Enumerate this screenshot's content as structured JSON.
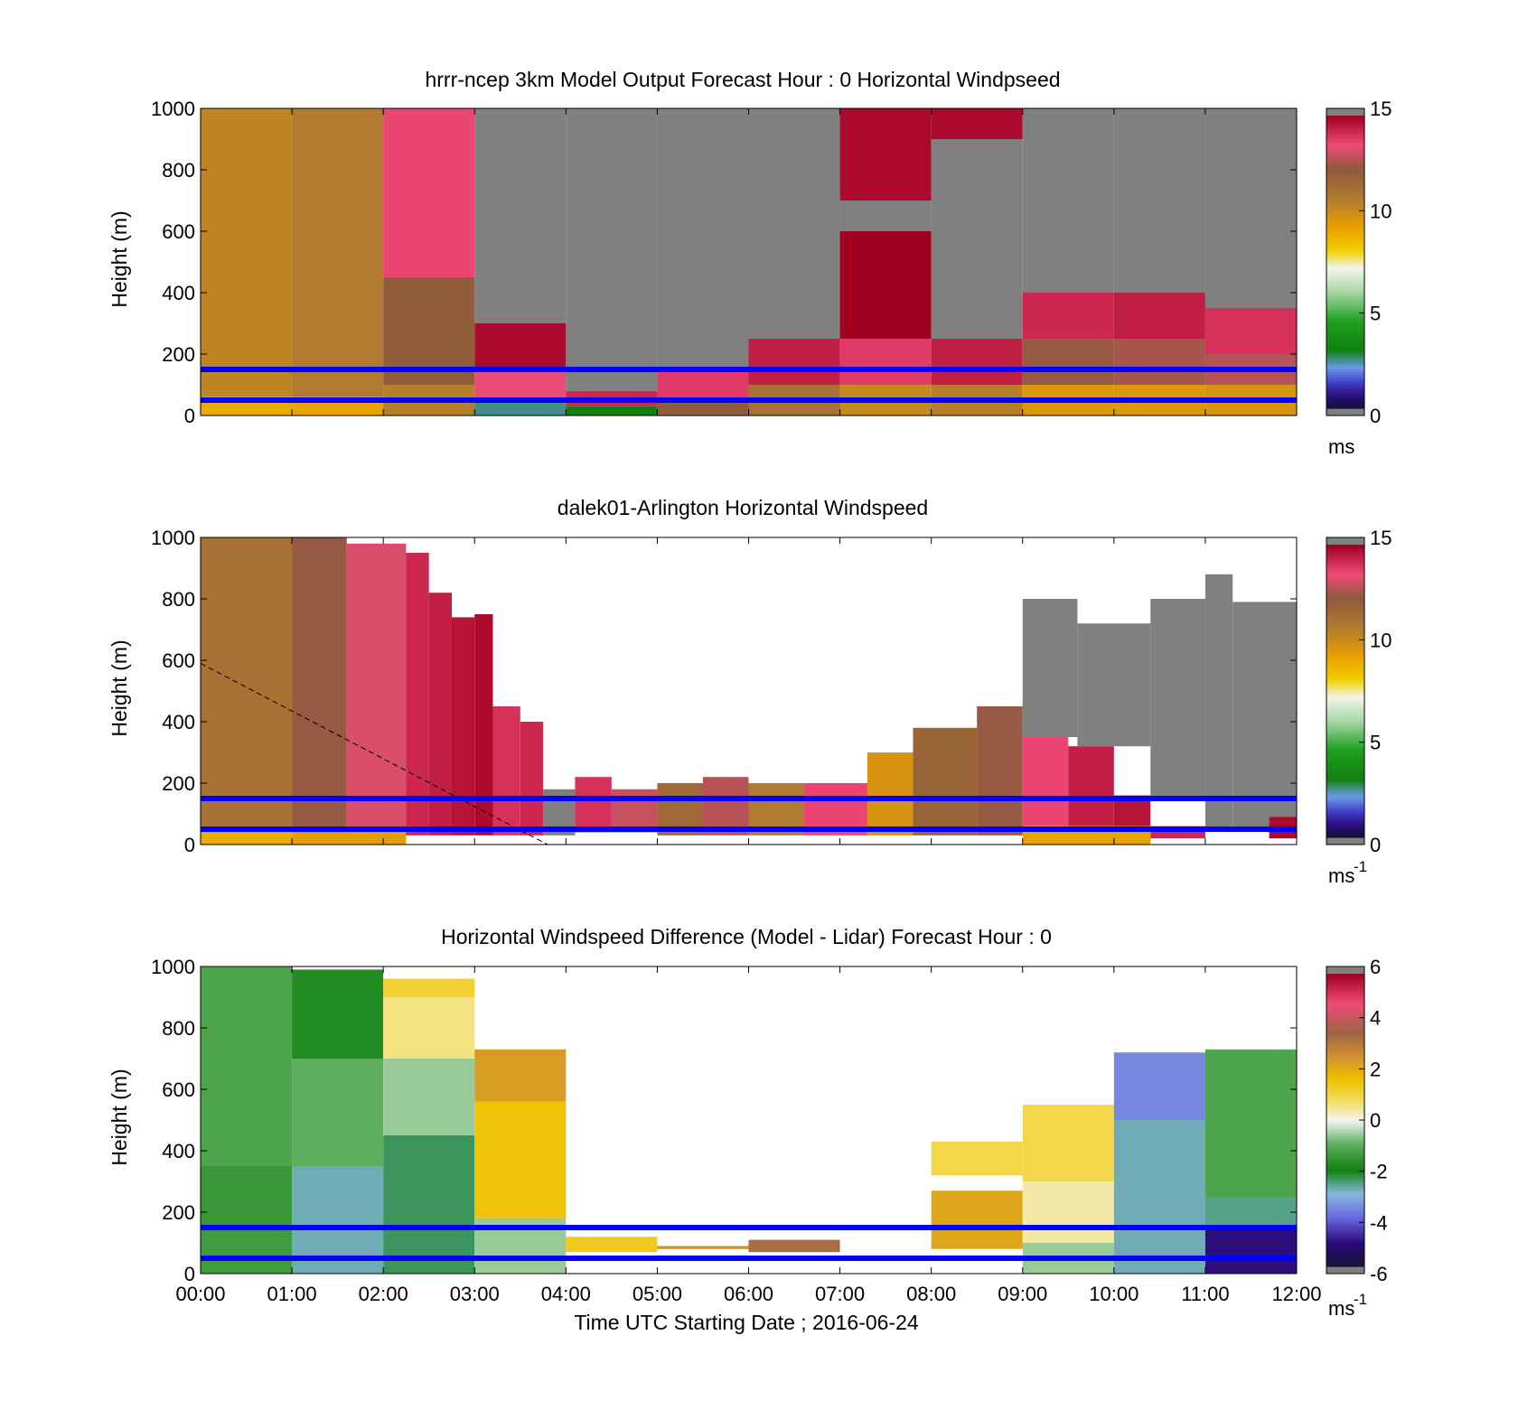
{
  "chart_data": [
    {
      "type": "heatmap",
      "title": "hrrr-ncep 3km Model Output   Forecast Hour : 0 Horizontal Windpseed",
      "ylabel": "Height (m)",
      "ylim": [
        0,
        1000
      ],
      "yticks": [
        "0",
        "200",
        "400",
        "600",
        "800",
        "1000"
      ],
      "xlim": [
        0,
        12
      ],
      "x_tick_labels_shown": false,
      "colorbar": {
        "range": [
          0,
          15
        ],
        "ticks": [
          "0",
          "5",
          "10",
          "15"
        ],
        "unit": "ms"
      },
      "reference_heights_m": [
        50,
        150
      ],
      "cells": [
        {
          "x": [
            0,
            1
          ],
          "y": [
            60,
            1000
          ],
          "v": 10.4
        },
        {
          "x": [
            0,
            1
          ],
          "y": [
            0,
            60
          ],
          "v": 9.0
        },
        {
          "x": [
            1,
            2
          ],
          "y": [
            60,
            1000
          ],
          "v": 10.8
        },
        {
          "x": [
            1,
            2
          ],
          "y": [
            0,
            60
          ],
          "v": 9.2
        },
        {
          "x": [
            2,
            3
          ],
          "y": [
            450,
            1000
          ],
          "v": 13.6
        },
        {
          "x": [
            2,
            3
          ],
          "y": [
            100,
            450
          ],
          "v": 12.2
        },
        {
          "x": [
            2,
            3
          ],
          "y": [
            0,
            100
          ],
          "v": 10.6
        },
        {
          "x": [
            3,
            4
          ],
          "y": [
            300,
            1000
          ],
          "v": null
        },
        {
          "x": [
            3,
            4
          ],
          "y": [
            150,
            300
          ],
          "v": 14.8
        },
        {
          "x": [
            3,
            4
          ],
          "y": [
            50,
            150
          ],
          "v": 13.4
        },
        {
          "x": [
            3,
            4
          ],
          "y": [
            0,
            50
          ],
          "v": 2.5
        },
        {
          "x": [
            4,
            5
          ],
          "y": [
            80,
            1000
          ],
          "v": null
        },
        {
          "x": [
            4,
            5
          ],
          "y": [
            30,
            80
          ],
          "v": 14.2
        },
        {
          "x": [
            4,
            5
          ],
          "y": [
            0,
            30
          ],
          "v": 3.0
        },
        {
          "x": [
            5,
            6
          ],
          "y": [
            150,
            1000
          ],
          "v": null
        },
        {
          "x": [
            5,
            6
          ],
          "y": [
            50,
            150
          ],
          "v": 13.8
        },
        {
          "x": [
            5,
            6
          ],
          "y": [
            0,
            50
          ],
          "v": 12.2
        },
        {
          "x": [
            6,
            7
          ],
          "y": [
            250,
            1000
          ],
          "v": null
        },
        {
          "x": [
            6,
            7
          ],
          "y": [
            100,
            250
          ],
          "v": 14.4
        },
        {
          "x": [
            6,
            7
          ],
          "y": [
            0,
            100
          ],
          "v": 11.2
        },
        {
          "x": [
            7,
            8
          ],
          "y": [
            700,
            1000
          ],
          "v": 14.8
        },
        {
          "x": [
            7,
            8
          ],
          "y": [
            600,
            700
          ],
          "v": null
        },
        {
          "x": [
            7,
            8
          ],
          "y": [
            250,
            600
          ],
          "v": 15.0
        },
        {
          "x": [
            7,
            8
          ],
          "y": [
            100,
            250
          ],
          "v": 13.8
        },
        {
          "x": [
            7,
            8
          ],
          "y": [
            0,
            100
          ],
          "v": 10.2
        },
        {
          "x": [
            8,
            9
          ],
          "y": [
            900,
            1000
          ],
          "v": 14.8
        },
        {
          "x": [
            8,
            9
          ],
          "y": [
            250,
            900
          ],
          "v": null
        },
        {
          "x": [
            8,
            9
          ],
          "y": [
            100,
            250
          ],
          "v": 14.4
        },
        {
          "x": [
            8,
            9
          ],
          "y": [
            0,
            100
          ],
          "v": 10.6
        },
        {
          "x": [
            9,
            10
          ],
          "y": [
            400,
            1000
          ],
          "v": null
        },
        {
          "x": [
            9,
            10
          ],
          "y": [
            250,
            400
          ],
          "v": 14.2
        },
        {
          "x": [
            9,
            10
          ],
          "y": [
            100,
            250
          ],
          "v": 12.4
        },
        {
          "x": [
            9,
            10
          ],
          "y": [
            0,
            100
          ],
          "v": 9.6
        },
        {
          "x": [
            10,
            11
          ],
          "y": [
            400,
            1000
          ],
          "v": null
        },
        {
          "x": [
            10,
            11
          ],
          "y": [
            250,
            400
          ],
          "v": 14.4
        },
        {
          "x": [
            10,
            11
          ],
          "y": [
            100,
            250
          ],
          "v": 12.6
        },
        {
          "x": [
            10,
            11
          ],
          "y": [
            0,
            100
          ],
          "v": 9.6
        },
        {
          "x": [
            11,
            12
          ],
          "y": [
            350,
            1000
          ],
          "v": null
        },
        {
          "x": [
            11,
            12
          ],
          "y": [
            200,
            350
          ],
          "v": 14.0
        },
        {
          "x": [
            11,
            12
          ],
          "y": [
            100,
            200
          ],
          "v": 12.8
        },
        {
          "x": [
            11,
            12
          ],
          "y": [
            0,
            100
          ],
          "v": 9.8
        }
      ]
    },
    {
      "type": "heatmap",
      "title": "dalek01-Arlington  Horizontal Windspeed",
      "ylabel": "Height (m)",
      "ylim": [
        0,
        1000
      ],
      "yticks": [
        "0",
        "200",
        "400",
        "600",
        "800",
        "1000"
      ],
      "xlim": [
        0,
        12
      ],
      "x_tick_labels_shown": false,
      "colorbar": {
        "range": [
          0,
          15
        ],
        "ticks": [
          "0",
          "5",
          "10",
          "15"
        ],
        "unit": "ms",
        "unit_exponent": "-1"
      },
      "reference_heights_m": [
        50,
        150
      ],
      "overlay_line": {
        "from": [
          0,
          590
        ],
        "to": [
          3.8,
          0
        ]
      },
      "cells": [
        {
          "x": [
            0,
            1
          ],
          "y": [
            40,
            1000
          ],
          "v": 11.2
        },
        {
          "x": [
            0,
            1
          ],
          "y": [
            0,
            40
          ],
          "v": 9.0
        },
        {
          "x": [
            1,
            1.6
          ],
          "y": [
            40,
            1000
          ],
          "v": 12.4
        },
        {
          "x": [
            1.6,
            2.25
          ],
          "y": [
            40,
            980
          ],
          "v": 13.2
        },
        {
          "x": [
            1,
            2.25
          ],
          "y": [
            0,
            40
          ],
          "v": 9.4
        },
        {
          "x": [
            2.25,
            2.5
          ],
          "y": [
            30,
            950
          ],
          "v": 14.2
        },
        {
          "x": [
            2.5,
            2.75
          ],
          "y": [
            30,
            820
          ],
          "v": 14.4
        },
        {
          "x": [
            2.75,
            3.0
          ],
          "y": [
            30,
            740
          ],
          "v": 14.6
        },
        {
          "x": [
            3.0,
            3.2
          ],
          "y": [
            30,
            750
          ],
          "v": 14.8
        },
        {
          "x": [
            3.2,
            3.5
          ],
          "y": [
            30,
            450
          ],
          "v": 14.0
        },
        {
          "x": [
            3.5,
            3.75
          ],
          "y": [
            30,
            400
          ],
          "v": 14.2
        },
        {
          "x": [
            3.75,
            4.1
          ],
          "y": [
            30,
            180
          ],
          "v": null
        },
        {
          "x": [
            4.1,
            4.5
          ],
          "y": [
            40,
            220
          ],
          "v": 14.0
        },
        {
          "x": [
            4.5,
            5.0
          ],
          "y": [
            40,
            180
          ],
          "v": 13.0
        },
        {
          "x": [
            5.0,
            5.5
          ],
          "y": [
            30,
            200
          ],
          "v": 11.6
        },
        {
          "x": [
            5.5,
            6.0
          ],
          "y": [
            30,
            220
          ],
          "v": 12.8
        },
        {
          "x": [
            6.0,
            6.6
          ],
          "y": [
            30,
            200
          ],
          "v": 10.8
        },
        {
          "x": [
            6.6,
            7.3
          ],
          "y": [
            30,
            200
          ],
          "v": 13.6
        },
        {
          "x": [
            7.3,
            7.8
          ],
          "y": [
            30,
            300
          ],
          "v": 9.8
        },
        {
          "x": [
            7.8,
            8.5
          ],
          "y": [
            30,
            380
          ],
          "v": 11.8
        },
        {
          "x": [
            8.5,
            9.0
          ],
          "y": [
            30,
            450
          ],
          "v": 12.4
        },
        {
          "x": [
            9.0,
            9.5
          ],
          "y": [
            60,
            350
          ],
          "v": 13.6
        },
        {
          "x": [
            9.5,
            10.0
          ],
          "y": [
            60,
            320
          ],
          "v": 14.4
        },
        {
          "x": [
            10.0,
            10.4
          ],
          "y": [
            60,
            160
          ],
          "v": 14.6
        },
        {
          "x": [
            9.0,
            10.4
          ],
          "y": [
            0,
            60
          ],
          "v": 9.2
        },
        {
          "x": [
            9.0,
            9.6
          ],
          "y": [
            350,
            800
          ],
          "v": null
        },
        {
          "x": [
            9.6,
            10.4
          ],
          "y": [
            320,
            720
          ],
          "v": null
        },
        {
          "x": [
            10.4,
            11.0
          ],
          "y": [
            150,
            800
          ],
          "v": null
        },
        {
          "x": [
            11.0,
            11.3
          ],
          "y": [
            50,
            880
          ],
          "v": null
        },
        {
          "x": [
            11.3,
            12.0
          ],
          "y": [
            50,
            790
          ],
          "v": null
        },
        {
          "x": [
            10.4,
            11.0
          ],
          "y": [
            20,
            60
          ],
          "v": 14.2
        },
        {
          "x": [
            11.7,
            12.0
          ],
          "y": [
            20,
            90
          ],
          "v": 14.8
        }
      ]
    },
    {
      "type": "heatmap",
      "title": "Horizontal Windspeed Difference (Model - Lidar) Forecast Hour : 0",
      "xlabel": "Time UTC  Starting Date ; 2016-06-24",
      "ylabel": "Height (m)",
      "ylim": [
        0,
        1000
      ],
      "yticks": [
        "0",
        "200",
        "400",
        "600",
        "800",
        "1000"
      ],
      "xlim": [
        0,
        12
      ],
      "xticks": [
        "00:00",
        "01:00",
        "02:00",
        "03:00",
        "04:00",
        "05:00",
        "06:00",
        "07:00",
        "08:00",
        "09:00",
        "10:00",
        "11:00",
        "12:00"
      ],
      "colorbar": {
        "range": [
          -6,
          6
        ],
        "ticks": [
          "-6",
          "-4",
          "-2",
          "0",
          "2",
          "4",
          "6"
        ],
        "unit": "ms",
        "unit_exponent": "-1"
      },
      "reference_heights_m": [
        50,
        150
      ],
      "cells": [
        {
          "x": [
            0,
            1
          ],
          "y": [
            350,
            1000
          ],
          "v": -1.2
        },
        {
          "x": [
            0,
            1
          ],
          "y": [
            150,
            350
          ],
          "v": -1.5
        },
        {
          "x": [
            0,
            1
          ],
          "y": [
            0,
            150
          ],
          "v": -1.4
        },
        {
          "x": [
            1,
            2
          ],
          "y": [
            700,
            990
          ],
          "v": -1.8
        },
        {
          "x": [
            1,
            2
          ],
          "y": [
            350,
            700
          ],
          "v": -1.0
        },
        {
          "x": [
            1,
            2
          ],
          "y": [
            0,
            350
          ],
          "v": -2.8
        },
        {
          "x": [
            2,
            3
          ],
          "y": [
            900,
            960
          ],
          "v": 1.2
        },
        {
          "x": [
            2,
            3
          ],
          "y": [
            700,
            900
          ],
          "v": 0.6
        },
        {
          "x": [
            2,
            3
          ],
          "y": [
            450,
            700
          ],
          "v": -0.6
        },
        {
          "x": [
            2,
            3
          ],
          "y": [
            0,
            450
          ],
          "v": -2.4
        },
        {
          "x": [
            3,
            4
          ],
          "y": [
            560,
            730
          ],
          "v": 2.4
        },
        {
          "x": [
            3,
            4
          ],
          "y": [
            180,
            560
          ],
          "v": 1.6
        },
        {
          "x": [
            3,
            4
          ],
          "y": [
            0,
            180
          ],
          "v": -0.6
        },
        {
          "x": [
            4,
            5
          ],
          "y": [
            70,
            120
          ],
          "v": 1.4
        },
        {
          "x": [
            5,
            6
          ],
          "y": [
            80,
            90
          ],
          "v": 2.6
        },
        {
          "x": [
            6,
            7
          ],
          "y": [
            70,
            110
          ],
          "v": 3.4
        },
        {
          "x": [
            8,
            9
          ],
          "y": [
            80,
            270
          ],
          "v": 2.2
        },
        {
          "x": [
            8,
            9
          ],
          "y": [
            320,
            430
          ],
          "v": 1.0
        },
        {
          "x": [
            9,
            10
          ],
          "y": [
            300,
            550
          ],
          "v": 1.0
        },
        {
          "x": [
            9,
            10
          ],
          "y": [
            100,
            300
          ],
          "v": 0.4
        },
        {
          "x": [
            9,
            10
          ],
          "y": [
            0,
            100
          ],
          "v": -0.6
        },
        {
          "x": [
            10,
            11
          ],
          "y": [
            500,
            720
          ],
          "v": -3.6
        },
        {
          "x": [
            10,
            11
          ],
          "y": [
            0,
            500
          ],
          "v": -2.8
        },
        {
          "x": [
            11,
            12
          ],
          "y": [
            250,
            730
          ],
          "v": -1.2
        },
        {
          "x": [
            11,
            12
          ],
          "y": [
            150,
            250
          ],
          "v": -2.6
        },
        {
          "x": [
            11,
            12
          ],
          "y": [
            0,
            150
          ],
          "v": -5.0
        }
      ]
    }
  ]
}
